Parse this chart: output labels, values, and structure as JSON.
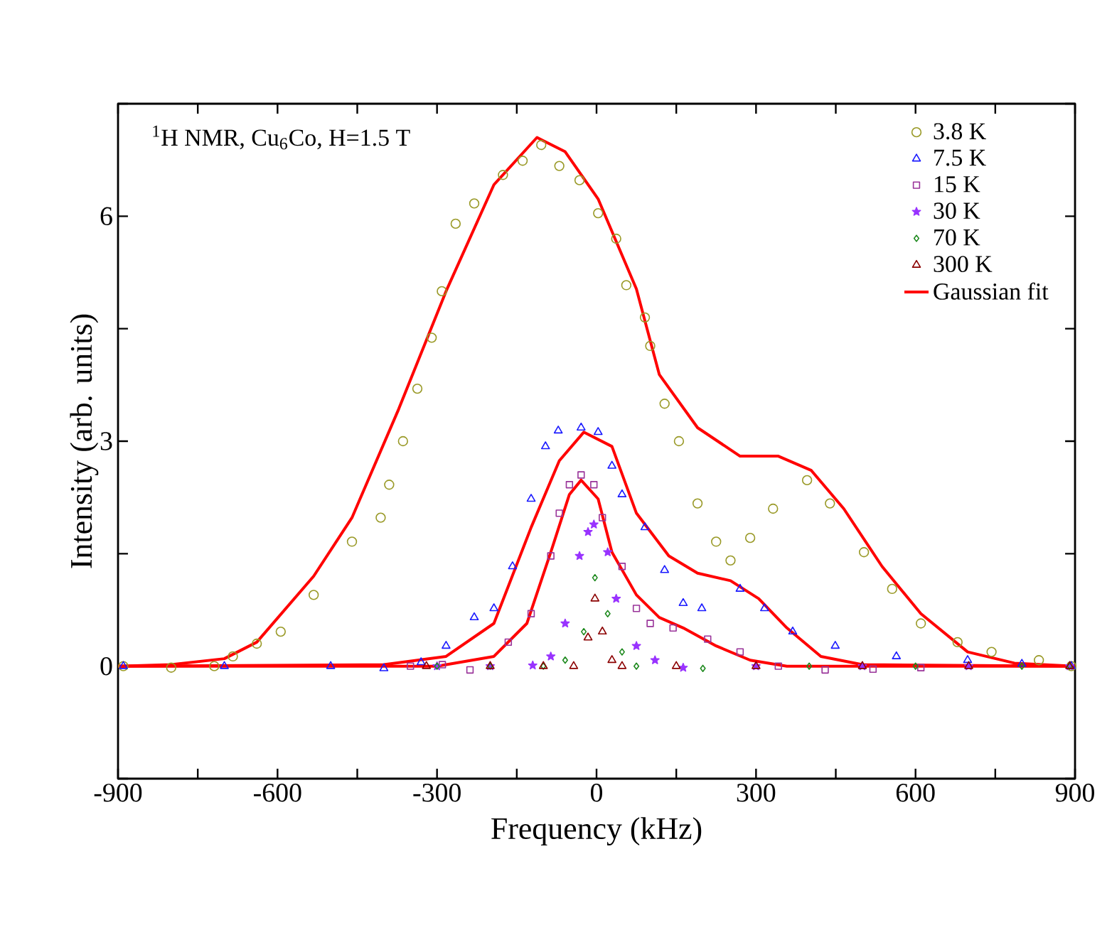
{
  "chart_data": {
    "type": "scatter",
    "xlabel": "Frequency (kHz)",
    "ylabel": "Intensity (arb. units)",
    "annotations": [
      "$^{1}$H NMR, Cu$_{6}$Co, H=1.5 T"
    ],
    "xlim": [
      -900,
      900
    ],
    "ylim": [
      -1.5,
      7.5
    ],
    "xticks": [
      -900,
      {
        "value": -750,
        "label": null
      },
      -600,
      {
        "value": -450,
        "label": null
      },
      -300,
      {
        "value": -150,
        "label": null
      },
      0,
      {
        "value": 150,
        "label": null
      },
      300,
      {
        "value": 450,
        "label": null
      },
      600,
      {
        "value": 750,
        "label": null
      },
      900
    ],
    "yticks": [
      {
        "value": -1.5,
        "label": null
      },
      0,
      {
        "value": 1.5,
        "label": null
      },
      3,
      {
        "value": 4.5,
        "label": null
      },
      6,
      {
        "value": 7.5,
        "label": null
      }
    ],
    "grid": false,
    "legend": "top right",
    "series": [
      {
        "name": "3.8 K",
        "color": "#999926",
        "marker": "circle",
        "x": [
          -890,
          -800,
          -719,
          -684,
          -639,
          -594,
          -532,
          -460,
          -406,
          -390,
          -364,
          -337,
          -310,
          -291,
          -265,
          -230,
          -176,
          -139,
          -104,
          -70,
          -32,
          3,
          37,
          56,
          91,
          101,
          128,
          155,
          190,
          225,
          252,
          289,
          332,
          396,
          439,
          503,
          556,
          610,
          679,
          743,
          832,
          893
        ],
        "values": [
          0,
          -0.02,
          0,
          0.13,
          0.3,
          0.46,
          0.95,
          1.66,
          1.98,
          2.42,
          3.0,
          3.7,
          4.38,
          5.0,
          5.9,
          6.17,
          6.55,
          6.74,
          6.95,
          6.67,
          6.48,
          6.04,
          5.7,
          5.08,
          4.65,
          4.27,
          3.5,
          3.0,
          2.17,
          1.66,
          1.41,
          1.71,
          2.1,
          2.48,
          2.17,
          1.52,
          1.03,
          0.57,
          0.32,
          0.19,
          0.08,
          0
        ]
      },
      {
        "name": "7.5 K",
        "color": "#1a1aff",
        "marker": "triangle",
        "x": [
          -890,
          -700,
          -500,
          -400,
          -330,
          -283,
          -230,
          -193,
          -158,
          -123,
          -96,
          -72,
          -29,
          3,
          29,
          48,
          91,
          128,
          163,
          198,
          270,
          316,
          369,
          449,
          564,
          698,
          800,
          893
        ],
        "values": [
          0,
          0,
          0,
          -0.03,
          0.05,
          0.27,
          0.65,
          0.77,
          1.33,
          2.23,
          2.93,
          3.14,
          3.18,
          3.12,
          2.67,
          2.29,
          1.85,
          1.28,
          0.84,
          0.77,
          1.03,
          0.77,
          0.46,
          0.27,
          0.13,
          0.08,
          0.03,
          0
        ]
      },
      {
        "name": "15 K",
        "color": "#993399",
        "marker": "square",
        "x": [
          -350,
          -290,
          -238,
          -166,
          -123,
          -86,
          -70,
          -51,
          -29,
          -5,
          11,
          48,
          75,
          101,
          144,
          209,
          270,
          342,
          430,
          520,
          610
        ],
        "values": [
          0,
          0.02,
          -0.05,
          0.32,
          0.7,
          1.47,
          2.04,
          2.42,
          2.55,
          2.42,
          1.98,
          1.33,
          0.77,
          0.57,
          0.51,
          0.36,
          0.19,
          0,
          -0.05,
          -0.04,
          -0.02
        ]
      },
      {
        "name": "30 K",
        "color": "#9933ff",
        "marker": "star",
        "x": [
          -300,
          -200,
          -120,
          -86,
          -59,
          -32,
          -16,
          -5,
          21,
          37,
          75,
          110,
          163,
          300,
          500,
          700,
          890
        ],
        "values": [
          0,
          0,
          0.01,
          0.13,
          0.57,
          1.47,
          1.79,
          1.89,
          1.52,
          0.9,
          0.27,
          0.08,
          -0.02,
          0,
          0,
          0,
          0
        ]
      },
      {
        "name": "70 K",
        "color": "#1f8a1f",
        "marker": "diamond",
        "x": [
          -300,
          -200,
          -100,
          -59,
          -24,
          -3,
          21,
          48,
          75,
          200,
          400,
          600,
          800,
          890
        ],
        "values": [
          0,
          0,
          0,
          0.08,
          0.46,
          1.18,
          0.7,
          0.19,
          0,
          -0.03,
          0,
          0,
          0,
          0
        ]
      },
      {
        "name": "300 K",
        "color": "#8b0000",
        "marker": "triangle",
        "x": [
          -320,
          -200,
          -100,
          -43,
          -16,
          -3,
          11,
          29,
          48,
          150,
          300,
          500,
          700,
          890
        ],
        "values": [
          0,
          0,
          0,
          0,
          0.38,
          0.9,
          0.46,
          0.08,
          0,
          0,
          0,
          0,
          0,
          0
        ]
      },
      {
        "name": "Gaussian fit",
        "type": "line",
        "color": "#ff0000",
        "marker": "none",
        "x": [
          -900,
          -800,
          -700,
          -639,
          -532,
          -460,
          -372,
          -283,
          -193,
          -112,
          -59,
          3,
          75,
          118,
          190,
          270,
          342,
          404,
          465,
          537,
          610,
          698,
          786,
          900
        ],
        "values": [
          0,
          0.02,
          0.1,
          0.32,
          1.2,
          1.98,
          3.43,
          5.0,
          6.42,
          7.05,
          6.86,
          6.23,
          5.03,
          3.89,
          3.18,
          2.8,
          2.8,
          2.61,
          2.1,
          1.33,
          0.7,
          0.19,
          0.04,
          0
        ]
      },
      {
        "type": "line",
        "color": "#ff0000",
        "marker": "none",
        "x": [
          -900,
          -400,
          -283,
          -193,
          -123,
          -70,
          -24,
          29,
          75,
          136,
          190,
          252,
          305,
          358,
          422,
          500,
          900
        ],
        "values": [
          0,
          0.02,
          0.13,
          0.57,
          1.85,
          2.74,
          3.12,
          2.93,
          2.04,
          1.47,
          1.24,
          1.14,
          0.9,
          0.51,
          0.13,
          0.02,
          0
        ]
      },
      {
        "type": "line",
        "color": "#ff0000",
        "marker": "none",
        "x": [
          -900,
          -300,
          -193,
          -131,
          -86,
          -51,
          -29,
          3,
          29,
          75,
          118,
          163,
          225,
          289,
          358,
          900
        ],
        "values": [
          0,
          0,
          0.13,
          0.57,
          1.52,
          2.29,
          2.48,
          2.23,
          1.52,
          0.95,
          0.65,
          0.51,
          0.27,
          0.08,
          0,
          0
        ]
      }
    ]
  }
}
